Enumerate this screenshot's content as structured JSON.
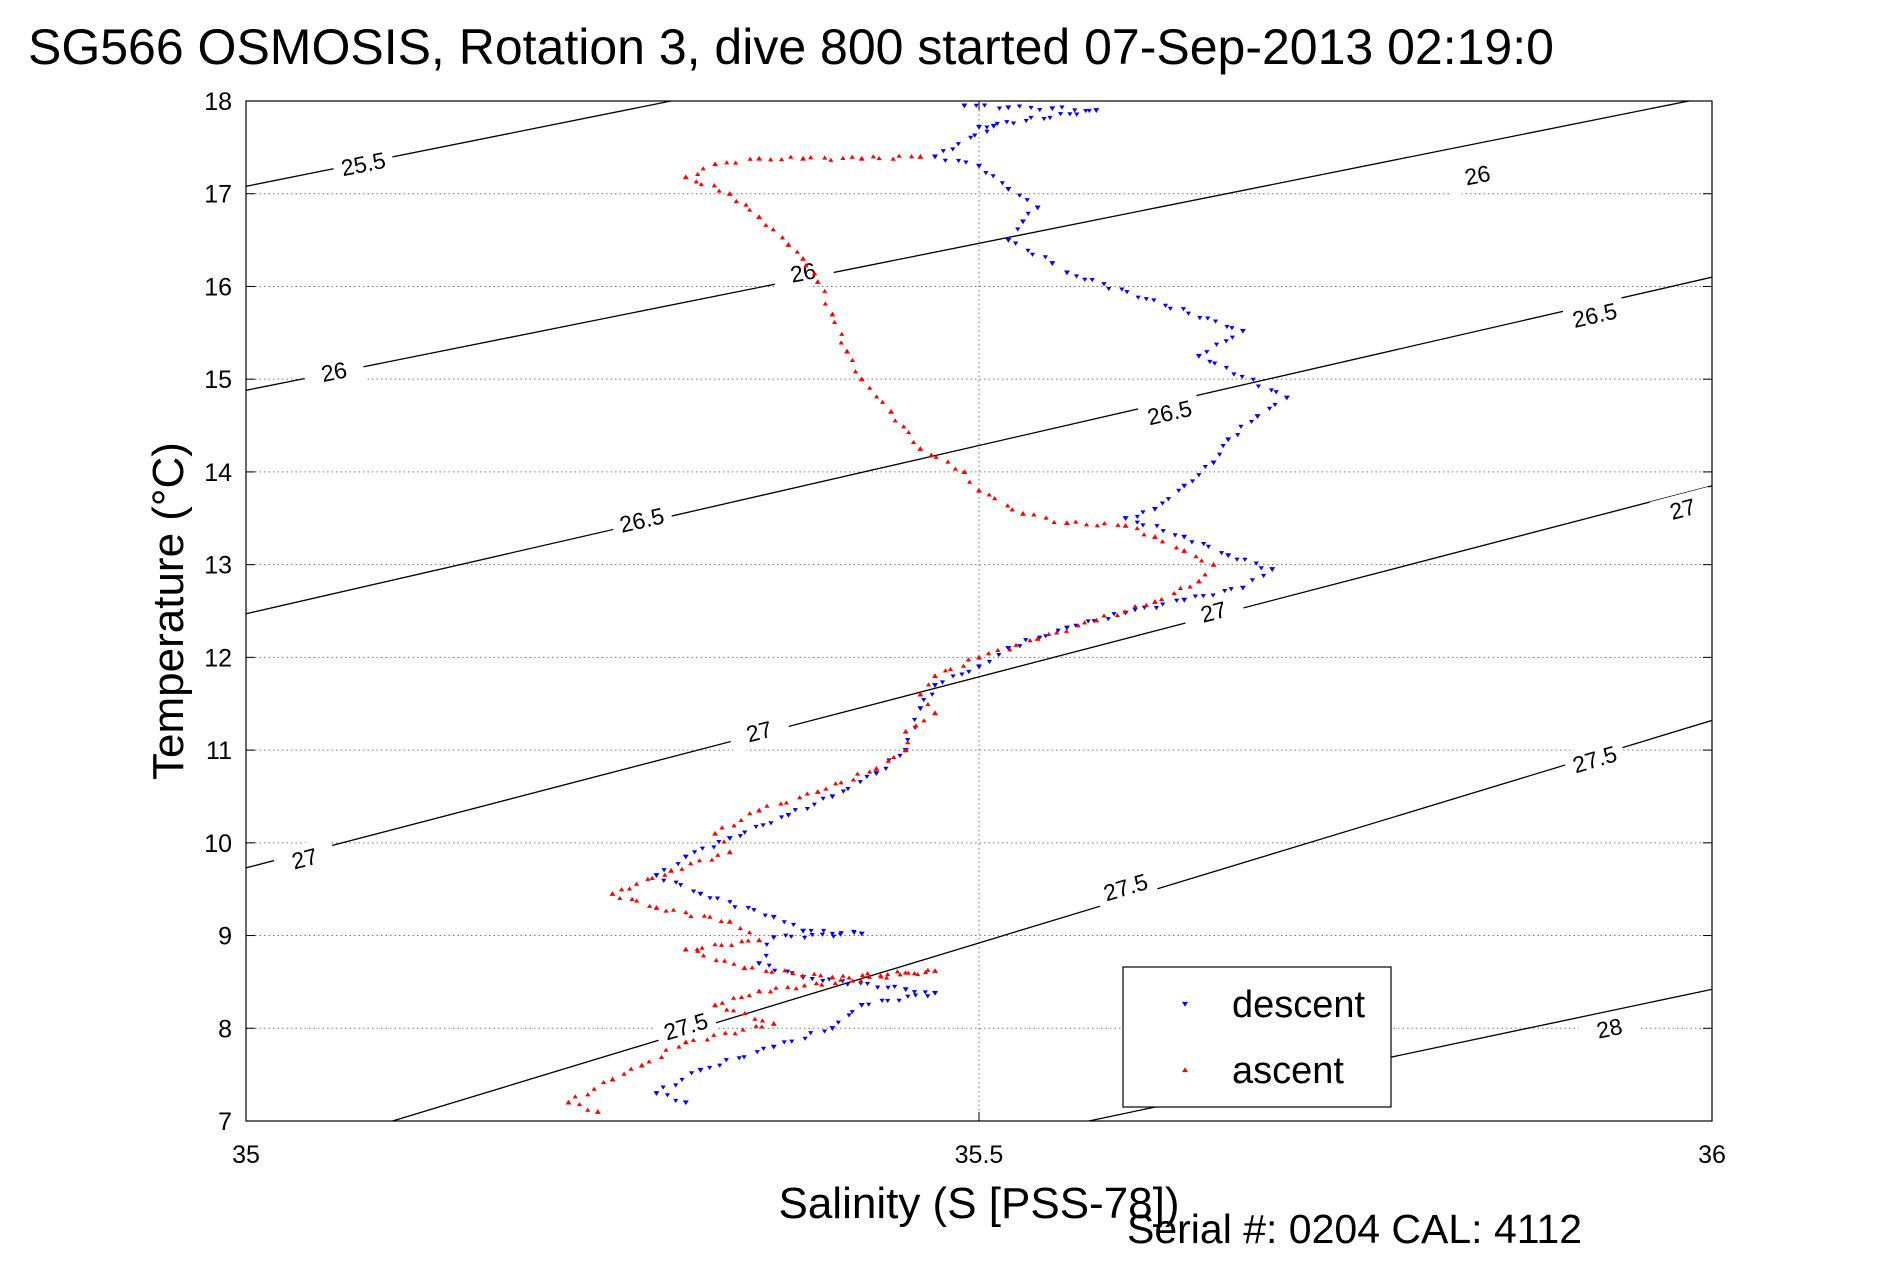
{
  "title": "SG566 OSMOSIS, Rotation 3, dive 800 started 07-Sep-2013 02:19:0",
  "footer": "Serial #: 0204  CAL: 4112",
  "chart_data": {
    "type": "scatter",
    "xlabel": "Salinity (S [PSS-78])",
    "ylabel": "Temperature (°C)",
    "xlim": [
      35,
      36
    ],
    "ylim": [
      7,
      18
    ],
    "xticks": [
      35,
      35.5,
      36
    ],
    "xtick_labels": [
      "35",
      "35.5",
      "36"
    ],
    "yticks": [
      7,
      8,
      9,
      10,
      11,
      12,
      13,
      14,
      15,
      16,
      17,
      18
    ],
    "grid": true,
    "legend": {
      "placement": "bottom-right",
      "entries": [
        "descent",
        "ascent"
      ]
    },
    "colors": {
      "descent": "#0000ff",
      "ascent": "#ff0000",
      "contour": "#000000"
    },
    "contours": [
      {
        "label": "25.5",
        "points": [
          [
            35.0,
            17.08
          ],
          [
            35.29,
            18.0
          ]
        ],
        "labels_at": [
          [
            35.08,
            17.32
          ]
        ]
      },
      {
        "label": "26",
        "points": [
          [
            35.0,
            14.88
          ],
          [
            36.0,
            18.05
          ]
        ],
        "labels_at": [
          [
            35.06,
            15.08
          ],
          [
            35.38,
            16.15
          ],
          [
            35.84,
            17.2
          ]
        ]
      },
      {
        "label": "26.5",
        "points": [
          [
            35.0,
            12.47
          ],
          [
            36.0,
            16.1
          ]
        ],
        "labels_at": [
          [
            35.27,
            13.48
          ],
          [
            35.63,
            14.64
          ],
          [
            35.92,
            15.69
          ]
        ]
      },
      {
        "label": "27",
        "points": [
          [
            35.0,
            9.73
          ],
          [
            36.0,
            13.85
          ]
        ],
        "labels_at": [
          [
            35.04,
            9.83
          ],
          [
            35.35,
            11.2
          ],
          [
            35.66,
            12.49
          ],
          [
            35.98,
            13.6
          ]
        ]
      },
      {
        "label": "27.5",
        "points": [
          [
            35.1,
            7.0
          ],
          [
            36.0,
            11.32
          ]
        ],
        "labels_at": [
          [
            35.3,
            8.02
          ],
          [
            35.6,
            9.52
          ],
          [
            35.92,
            10.9
          ]
        ]
      },
      {
        "label": "28",
        "points": [
          [
            35.56,
            6.95
          ],
          [
            36.0,
            8.42
          ]
        ],
        "labels_at": [
          [
            35.93,
            8.0
          ]
        ]
      }
    ],
    "series": [
      {
        "name": "descent",
        "marker": "triangle-down",
        "points": [
          [
            35.49,
            17.95
          ],
          [
            35.52,
            17.93
          ],
          [
            35.55,
            17.92
          ],
          [
            35.58,
            17.9
          ],
          [
            35.5,
            17.72
          ],
          [
            35.51,
            17.73
          ],
          [
            35.47,
            17.4
          ],
          [
            35.5,
            17.3
          ],
          [
            35.52,
            17.05
          ],
          [
            35.54,
            16.85
          ],
          [
            35.53,
            16.7
          ],
          [
            35.52,
            16.5
          ],
          [
            35.55,
            16.25
          ],
          [
            35.56,
            16.15
          ],
          [
            35.68,
            15.52
          ],
          [
            35.65,
            15.25
          ],
          [
            35.71,
            14.8
          ],
          [
            35.69,
            14.6
          ],
          [
            35.67,
            14.35
          ],
          [
            35.66,
            14.1
          ],
          [
            35.64,
            13.85
          ],
          [
            35.62,
            13.6
          ],
          [
            35.6,
            13.5
          ],
          [
            35.64,
            13.3
          ],
          [
            35.67,
            13.1
          ],
          [
            35.7,
            12.95
          ],
          [
            35.68,
            12.75
          ],
          [
            35.64,
            12.62
          ],
          [
            35.6,
            12.48
          ],
          [
            35.56,
            12.32
          ],
          [
            35.52,
            12.1
          ],
          [
            35.5,
            11.9
          ],
          [
            35.47,
            11.7
          ],
          [
            35.46,
            11.45
          ],
          [
            35.45,
            11.0
          ],
          [
            35.43,
            10.75
          ],
          [
            35.4,
            10.5
          ],
          [
            35.37,
            10.3
          ],
          [
            35.33,
            10.05
          ],
          [
            35.3,
            9.85
          ],
          [
            35.28,
            9.65
          ],
          [
            35.31,
            9.45
          ],
          [
            35.36,
            9.2
          ],
          [
            35.38,
            9.05
          ],
          [
            35.42,
            9.02
          ],
          [
            35.36,
            8.98
          ],
          [
            35.35,
            8.7
          ],
          [
            35.38,
            8.55
          ],
          [
            35.45,
            8.42
          ],
          [
            35.47,
            8.38
          ],
          [
            35.42,
            8.25
          ],
          [
            35.4,
            8.0
          ],
          [
            35.36,
            7.8
          ],
          [
            35.31,
            7.55
          ],
          [
            35.28,
            7.3
          ],
          [
            35.3,
            7.2
          ]
        ]
      },
      {
        "name": "ascent",
        "marker": "triangle-up",
        "points": [
          [
            35.46,
            17.4
          ],
          [
            35.42,
            17.38
          ],
          [
            35.38,
            17.38
          ],
          [
            35.35,
            17.38
          ],
          [
            35.32,
            17.32
          ],
          [
            35.3,
            17.18
          ],
          [
            35.33,
            17.0
          ],
          [
            35.35,
            16.75
          ],
          [
            35.37,
            16.45
          ],
          [
            35.38,
            16.3
          ],
          [
            35.39,
            16.05
          ],
          [
            35.4,
            15.7
          ],
          [
            35.41,
            15.3
          ],
          [
            35.42,
            15.0
          ],
          [
            35.44,
            14.65
          ],
          [
            35.46,
            14.25
          ],
          [
            35.49,
            14.0
          ],
          [
            35.5,
            13.8
          ],
          [
            35.53,
            13.55
          ],
          [
            35.56,
            13.45
          ],
          [
            35.6,
            13.42
          ],
          [
            35.62,
            13.3
          ],
          [
            35.64,
            13.15
          ],
          [
            35.66,
            13.0
          ],
          [
            35.65,
            12.82
          ],
          [
            35.62,
            12.6
          ],
          [
            35.58,
            12.4
          ],
          [
            35.54,
            12.2
          ],
          [
            35.5,
            12.0
          ],
          [
            35.47,
            11.8
          ],
          [
            35.46,
            11.6
          ],
          [
            35.47,
            11.4
          ],
          [
            35.45,
            11.2
          ],
          [
            35.45,
            11.0
          ],
          [
            35.43,
            10.8
          ],
          [
            35.39,
            10.55
          ],
          [
            35.35,
            10.35
          ],
          [
            35.32,
            10.1
          ],
          [
            35.33,
            9.9
          ],
          [
            35.29,
            9.7
          ],
          [
            35.25,
            9.45
          ],
          [
            35.28,
            9.3
          ],
          [
            35.33,
            9.15
          ],
          [
            35.35,
            8.95
          ],
          [
            35.3,
            8.85
          ],
          [
            35.34,
            8.65
          ],
          [
            35.4,
            8.55
          ],
          [
            35.47,
            8.62
          ],
          [
            35.35,
            8.4
          ],
          [
            35.32,
            8.25
          ],
          [
            35.36,
            8.05
          ],
          [
            35.3,
            7.85
          ],
          [
            35.27,
            7.6
          ],
          [
            35.25,
            7.45
          ],
          [
            35.22,
            7.2
          ],
          [
            35.24,
            7.1
          ]
        ]
      }
    ]
  }
}
